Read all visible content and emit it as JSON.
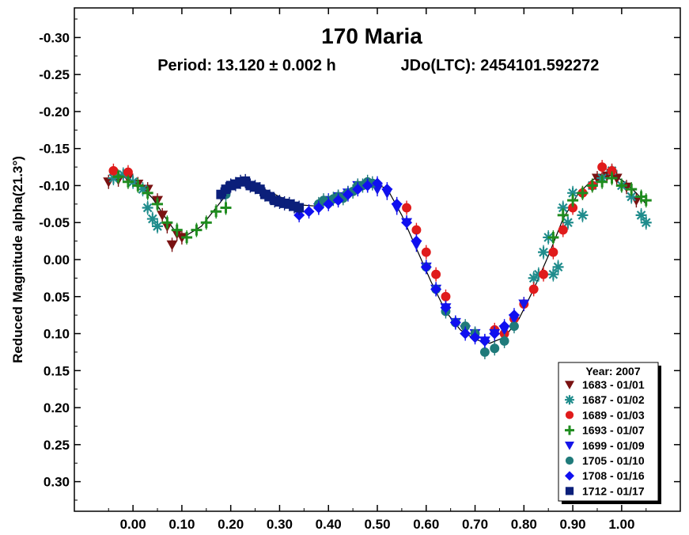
{
  "chart_data": {
    "type": "scatter",
    "title": "170 Maria",
    "subtitle_period": "Period: 13.120 ± 0.002 h",
    "subtitle_epoch": "JDo(LTC): 2454101.592272",
    "xlabel": "",
    "ylabel": "Reduced Magnitude alpha(21.3°)",
    "xlim": [
      -0.12,
      1.12
    ],
    "ylim": [
      -0.34,
      0.34
    ],
    "y_inverted": true,
    "xticks": [
      "0.00",
      "0.10",
      "0.20",
      "0.30",
      "0.40",
      "0.50",
      "0.60",
      "0.70",
      "0.80",
      "0.90",
      "1.00"
    ],
    "xtick_values": [
      0,
      0.1,
      0.2,
      0.3,
      0.4,
      0.5,
      0.6,
      0.7,
      0.8,
      0.9,
      1.0
    ],
    "yticks": [
      "-0.30",
      "-0.25",
      "-0.20",
      "-0.15",
      "-0.10",
      "-0.05",
      "0.00",
      "0.05",
      "0.10",
      "0.15",
      "0.20",
      "0.25",
      "0.30"
    ],
    "ytick_values": [
      -0.3,
      -0.25,
      -0.2,
      -0.15,
      -0.1,
      -0.05,
      0,
      0.05,
      0.1,
      0.15,
      0.2,
      0.25,
      0.3
    ],
    "grid": false,
    "legend_title": "Year: 2007",
    "legend_position": "bottom-right",
    "fit_curve": {
      "x": [
        -0.05,
        -0.02,
        0.01,
        0.04,
        0.07,
        0.09,
        0.11,
        0.14,
        0.17,
        0.2,
        0.23,
        0.26,
        0.3,
        0.34,
        0.38,
        0.42,
        0.46,
        0.49,
        0.52,
        0.55,
        0.58,
        0.61,
        0.64,
        0.67,
        0.7,
        0.73,
        0.76,
        0.79,
        0.82,
        0.85,
        0.88,
        0.91,
        0.94,
        0.97,
        1.0,
        1.03,
        1.05
      ],
      "y": [
        -0.108,
        -0.112,
        -0.103,
        -0.083,
        -0.053,
        -0.035,
        -0.033,
        -0.045,
        -0.07,
        -0.095,
        -0.105,
        -0.098,
        -0.085,
        -0.074,
        -0.072,
        -0.086,
        -0.1,
        -0.103,
        -0.096,
        -0.06,
        -0.015,
        0.03,
        0.07,
        0.095,
        0.108,
        0.113,
        0.105,
        0.08,
        0.04,
        -0.005,
        -0.055,
        -0.088,
        -0.108,
        -0.115,
        -0.108,
        -0.09,
        -0.075
      ]
    },
    "series": [
      {
        "name": "1683 - 01/01",
        "marker": "triangle-down",
        "color": "#7a1212",
        "x": [
          -0.05,
          -0.03,
          -0.01,
          0.01,
          0.03,
          0.05,
          0.06,
          0.07,
          0.08,
          0.09,
          0.1,
          0.95,
          0.97,
          0.99,
          1.01,
          1.03
        ],
        "y": [
          -0.105,
          -0.108,
          -0.11,
          -0.102,
          -0.095,
          -0.08,
          -0.06,
          -0.045,
          -0.02,
          -0.035,
          -0.03,
          -0.11,
          -0.113,
          -0.11,
          -0.098,
          -0.08
        ]
      },
      {
        "name": "1687 - 01/02",
        "marker": "asterisk",
        "color": "#1f8c8c",
        "x": [
          -0.04,
          -0.02,
          0.0,
          0.02,
          0.03,
          0.04,
          0.05,
          0.82,
          0.83,
          0.84,
          0.85,
          0.86,
          0.87,
          0.88,
          0.89,
          0.9,
          0.92,
          0.94,
          0.96,
          0.98,
          1.0,
          1.02,
          1.04,
          1.05
        ],
        "y": [
          -0.11,
          -0.115,
          -0.105,
          -0.095,
          -0.07,
          -0.055,
          -0.045,
          0.025,
          0.02,
          -0.01,
          -0.03,
          0.02,
          0.01,
          -0.07,
          -0.05,
          -0.09,
          -0.06,
          -0.1,
          -0.11,
          -0.12,
          -0.1,
          -0.085,
          -0.06,
          -0.05
        ]
      },
      {
        "name": "1689 - 01/03",
        "marker": "circle",
        "color": "#e01b1b",
        "x": [
          -0.04,
          -0.01,
          0.56,
          0.58,
          0.6,
          0.62,
          0.64,
          0.74,
          0.76,
          0.78,
          0.8,
          0.82,
          0.84,
          0.86,
          0.88,
          0.9,
          0.92,
          0.94,
          0.96,
          0.98
        ],
        "y": [
          -0.12,
          -0.118,
          -0.07,
          -0.04,
          -0.01,
          0.02,
          0.05,
          0.095,
          0.1,
          0.08,
          0.06,
          0.04,
          0.02,
          -0.01,
          -0.04,
          -0.07,
          -0.09,
          -0.1,
          -0.125,
          -0.12
        ]
      },
      {
        "name": "1693 - 01/07",
        "marker": "plus",
        "color": "#1f8c1f",
        "x": [
          -0.03,
          -0.01,
          0.01,
          0.03,
          0.05,
          0.07,
          0.09,
          0.11,
          0.13,
          0.15,
          0.17,
          0.19,
          0.86,
          0.88,
          0.9,
          0.92,
          0.94,
          0.96,
          0.98,
          1.0,
          1.02,
          1.04,
          1.05
        ],
        "y": [
          -0.112,
          -0.105,
          -0.1,
          -0.09,
          -0.075,
          -0.05,
          -0.04,
          -0.03,
          -0.04,
          -0.05,
          -0.065,
          -0.07,
          -0.03,
          -0.06,
          -0.08,
          -0.09,
          -0.1,
          -0.105,
          -0.11,
          -0.1,
          -0.095,
          -0.085,
          -0.08
        ]
      },
      {
        "name": "1699 - 01/09",
        "marker": "triangle-down",
        "color": "#1515e8",
        "x": [
          0.38,
          0.4,
          0.42,
          0.44,
          0.46,
          0.48,
          0.5,
          0.52,
          0.54,
          0.56,
          0.58,
          0.6,
          0.62,
          0.64,
          0.66,
          0.68,
          0.7,
          0.72,
          0.74,
          0.76,
          0.78,
          0.8
        ],
        "y": [
          -0.07,
          -0.08,
          -0.085,
          -0.09,
          -0.1,
          -0.1,
          -0.095,
          -0.09,
          -0.07,
          -0.05,
          -0.02,
          0.01,
          0.04,
          0.065,
          0.085,
          0.095,
          0.1,
          0.11,
          0.1,
          0.095,
          0.08,
          0.06
        ]
      },
      {
        "name": "1705 - 01/10",
        "marker": "circle",
        "color": "#1f7a7a",
        "x": [
          0.19,
          0.38,
          0.39,
          0.4,
          0.41,
          0.42,
          0.43,
          0.44,
          0.45,
          0.46,
          0.47,
          0.48,
          0.49,
          0.6,
          0.62,
          0.64,
          0.66,
          0.68,
          0.7,
          0.72,
          0.74,
          0.76,
          0.78
        ],
        "y": [
          -0.088,
          -0.075,
          -0.08,
          -0.078,
          -0.082,
          -0.085,
          -0.083,
          -0.09,
          -0.092,
          -0.1,
          -0.1,
          -0.105,
          -0.103,
          0.01,
          0.04,
          0.07,
          0.085,
          0.09,
          0.1,
          0.125,
          0.12,
          0.11,
          0.09
        ]
      },
      {
        "name": "1708 - 01/16",
        "marker": "diamond",
        "color": "#1010f0",
        "x": [
          0.34,
          0.36,
          0.38,
          0.4,
          0.42,
          0.44,
          0.46,
          0.48,
          0.5,
          0.52,
          0.54,
          0.56,
          0.58,
          0.6,
          0.62,
          0.64,
          0.66,
          0.68,
          0.7,
          0.72,
          0.74,
          0.76,
          0.78
        ],
        "y": [
          -0.06,
          -0.065,
          -0.07,
          -0.075,
          -0.08,
          -0.088,
          -0.095,
          -0.1,
          -0.103,
          -0.095,
          -0.075,
          -0.05,
          -0.025,
          0.01,
          0.04,
          0.065,
          0.085,
          0.1,
          0.105,
          0.11,
          0.1,
          0.09,
          0.075
        ]
      },
      {
        "name": "1712 - 01/17",
        "marker": "square",
        "color": "#0b1f7a",
        "x": [
          0.18,
          0.19,
          0.2,
          0.21,
          0.22,
          0.23,
          0.24,
          0.25,
          0.26,
          0.27,
          0.28,
          0.29,
          0.3,
          0.31,
          0.32,
          0.33,
          0.34
        ],
        "y": [
          -0.088,
          -0.095,
          -0.1,
          -0.102,
          -0.105,
          -0.106,
          -0.1,
          -0.098,
          -0.095,
          -0.088,
          -0.085,
          -0.08,
          -0.078,
          -0.076,
          -0.075,
          -0.072,
          -0.07
        ]
      }
    ]
  }
}
